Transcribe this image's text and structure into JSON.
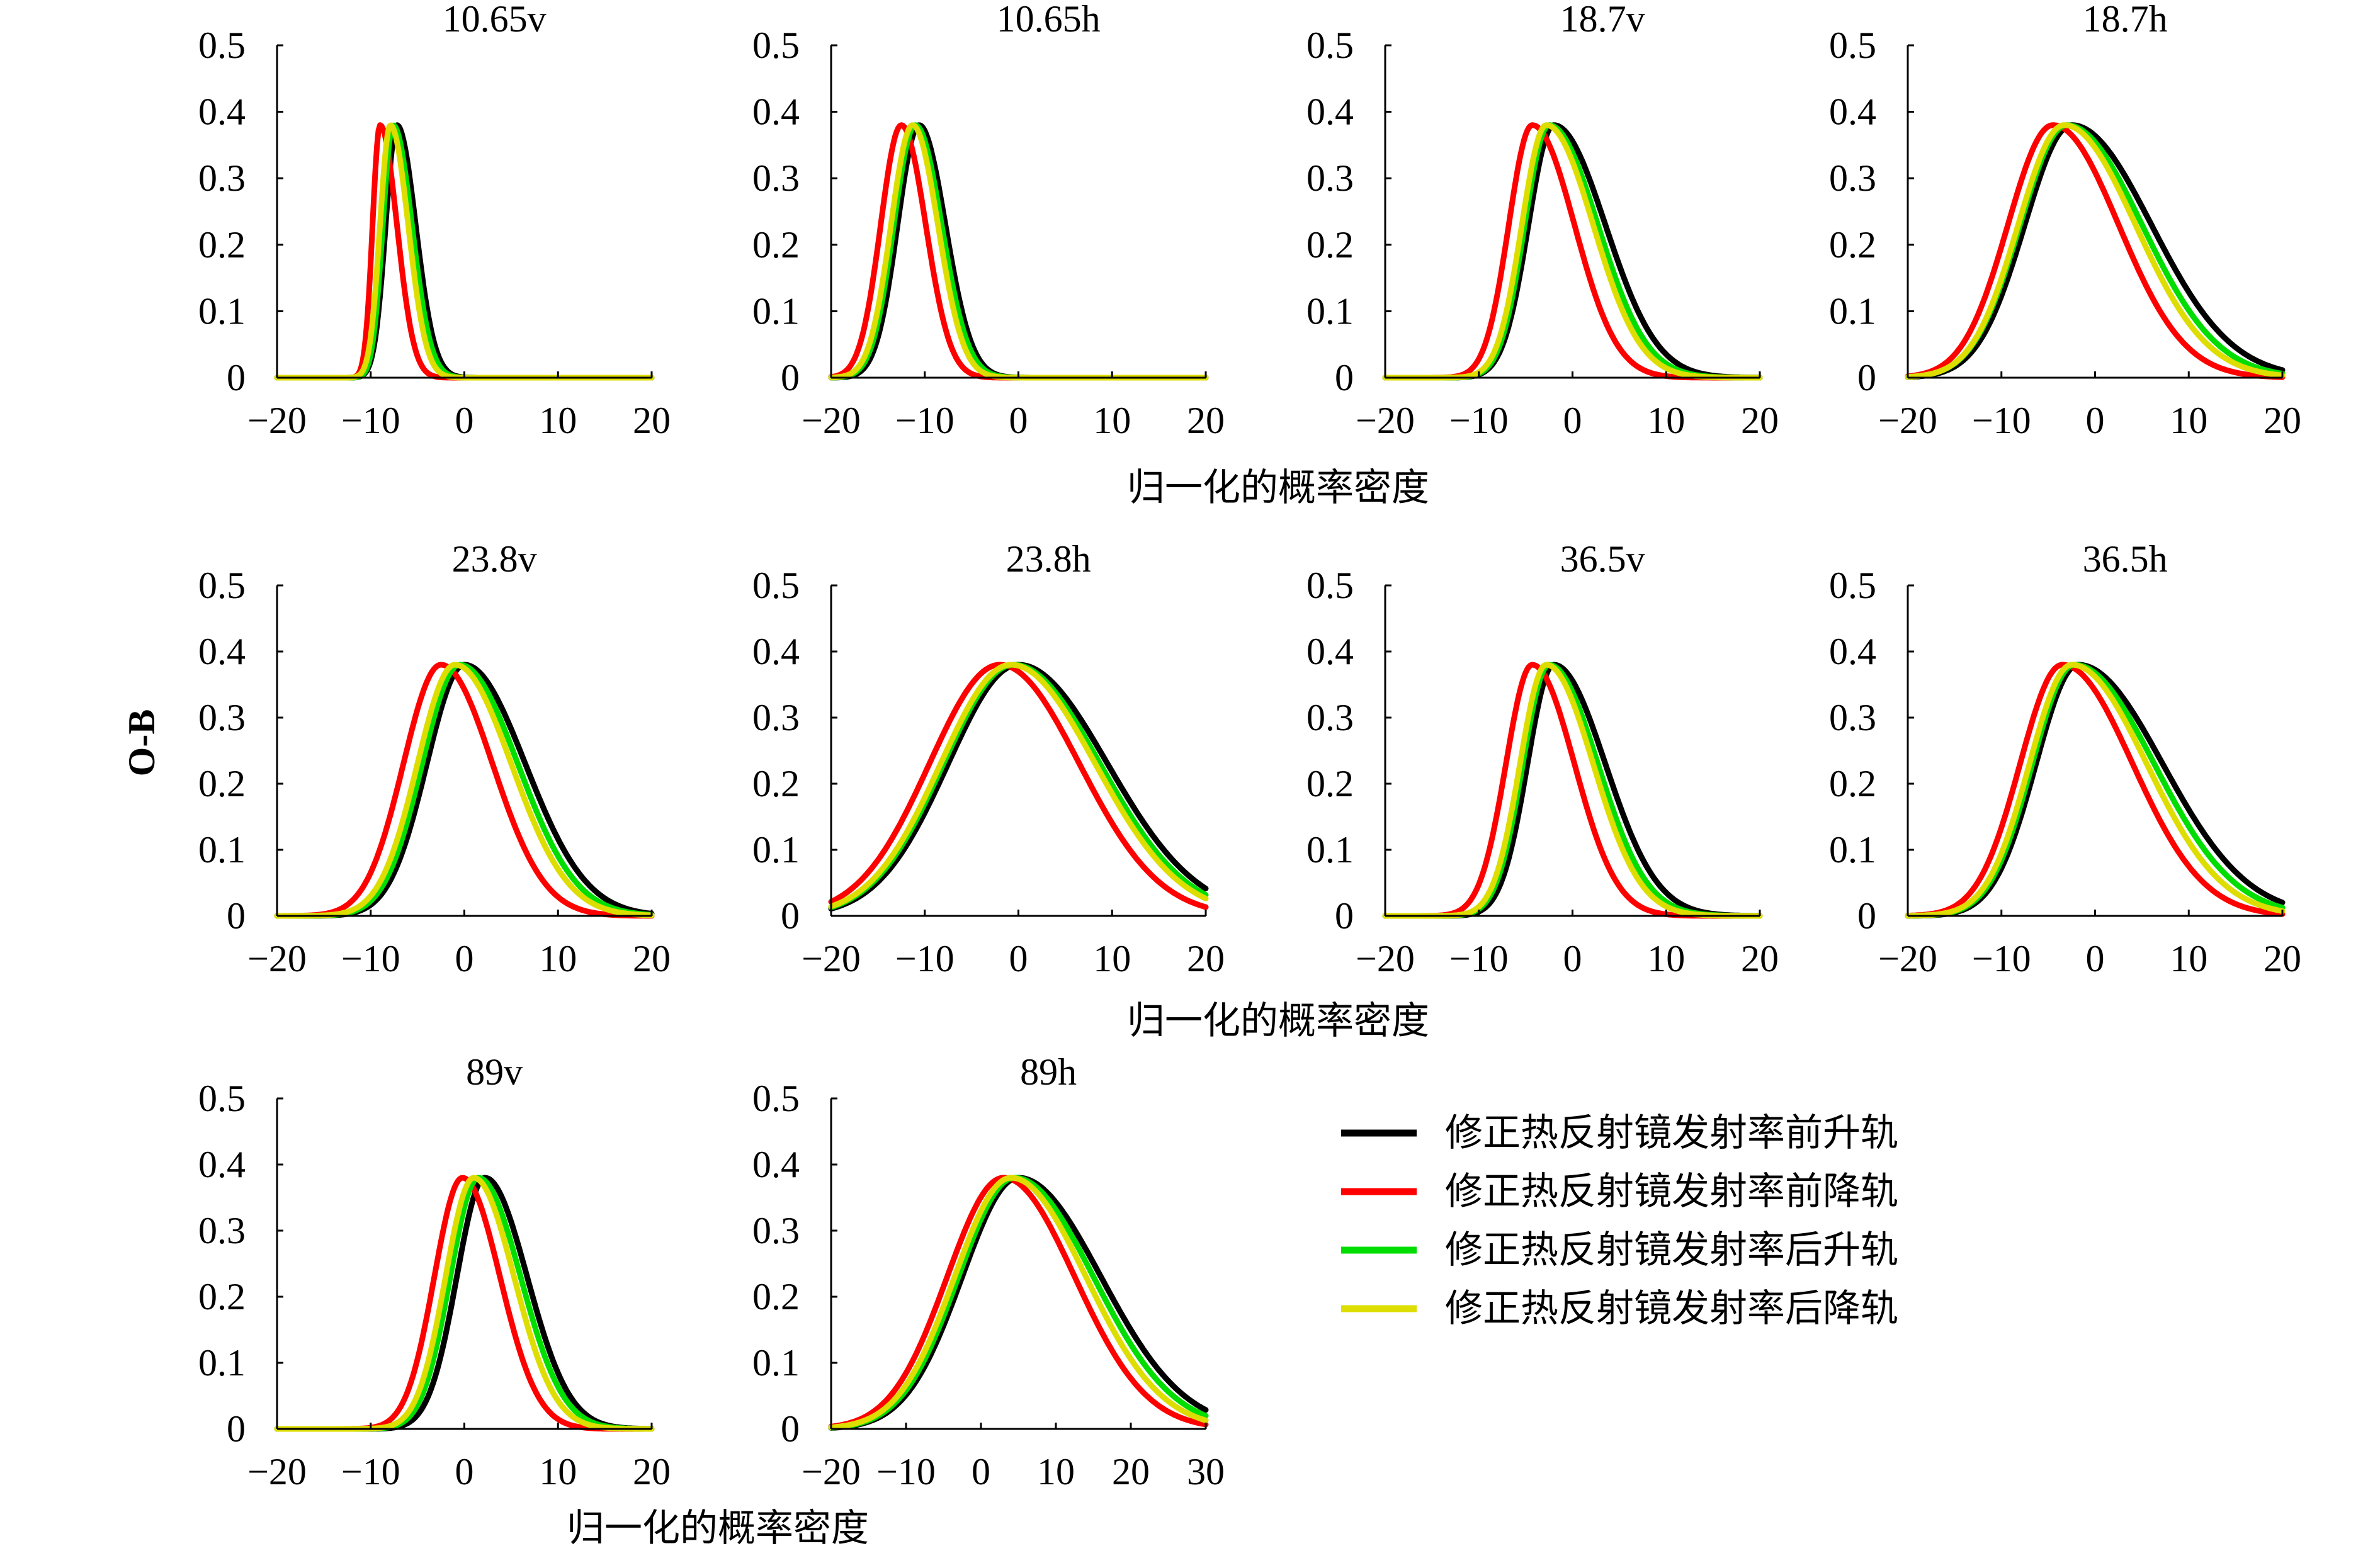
{
  "chart_data": {
    "type": "line",
    "ylabel": "O-B",
    "xlabel": "归一化的概率密度",
    "legend": {
      "placement": "right",
      "entries": [
        {
          "name": "修正热反射镜发射率前升轨",
          "color": "#000000"
        },
        {
          "name": "修正热反射镜发射率前降轨",
          "color": "#ff0000"
        },
        {
          "name": "修正热反射镜发射率后升轨",
          "color": "#00dd00"
        },
        {
          "name": "修正热反射镜发射率后降轨",
          "color": "#dddd00"
        }
      ]
    },
    "yticks": [
      "0",
      "0.1",
      "0.2",
      "0.3",
      "0.4",
      "0.5"
    ],
    "ylim": [
      0,
      0.5
    ],
    "panels": [
      {
        "title": "10.65v",
        "xlim": [
          -20,
          20
        ],
        "xticks": [
          "−20",
          "−10",
          "0",
          "10",
          "20"
        ],
        "series": [
          {
            "mu": -7.2,
            "sl": 1.2,
            "sr": 2.0
          },
          {
            "mu": -9.0,
            "sl": 0.8,
            "sr": 1.8
          },
          {
            "mu": -7.6,
            "sl": 1.1,
            "sr": 2.0
          },
          {
            "mu": -7.9,
            "sl": 1.1,
            "sr": 1.9
          }
        ]
      },
      {
        "title": "10.65h",
        "xlim": [
          -20,
          20
        ],
        "xticks": [
          "−20",
          "−10",
          "0",
          "10",
          "20"
        ],
        "series": [
          {
            "mu": -10.6,
            "sl": 2.3,
            "sr": 2.8
          },
          {
            "mu": -12.5,
            "sl": 2.2,
            "sr": 2.6
          },
          {
            "mu": -11.0,
            "sl": 2.3,
            "sr": 2.8
          },
          {
            "mu": -11.3,
            "sl": 2.3,
            "sr": 2.7
          }
        ]
      },
      {
        "title": "18.7v",
        "xlim": [
          -20,
          20
        ],
        "xticks": [
          "−20",
          "−10",
          "0",
          "10",
          "20"
        ],
        "series": [
          {
            "mu": -2.0,
            "sl": 2.7,
            "sr": 5.5
          },
          {
            "mu": -4.3,
            "sl": 2.5,
            "sr": 4.5
          },
          {
            "mu": -2.5,
            "sl": 2.6,
            "sr": 5.2
          },
          {
            "mu": -2.8,
            "sl": 2.6,
            "sr": 5.0
          }
        ]
      },
      {
        "title": "18.7h",
        "xlim": [
          -20,
          20
        ],
        "xticks": [
          "−20",
          "−10",
          "0",
          "10",
          "20"
        ],
        "series": [
          {
            "mu": -2.5,
            "sl": 5.0,
            "sr": 8.5
          },
          {
            "mu": -4.5,
            "sl": 4.8,
            "sr": 7.0
          },
          {
            "mu": -3.0,
            "sl": 5.0,
            "sr": 8.0
          },
          {
            "mu": -3.3,
            "sl": 4.9,
            "sr": 7.6
          }
        ]
      },
      {
        "title": "23.8v",
        "xlim": [
          -20,
          20
        ],
        "xticks": [
          "−20",
          "−10",
          "0",
          "10",
          "20"
        ],
        "series": [
          {
            "mu": 0.0,
            "sl": 4.0,
            "sr": 6.5
          },
          {
            "mu": -2.5,
            "sl": 4.0,
            "sr": 5.5
          },
          {
            "mu": -0.5,
            "sl": 4.0,
            "sr": 6.2
          },
          {
            "mu": -1.0,
            "sl": 4.0,
            "sr": 6.0
          }
        ]
      },
      {
        "title": "23.8h",
        "xlim": [
          -20,
          20
        ],
        "xticks": [
          "−20",
          "−10",
          "0",
          "10",
          "20"
        ],
        "series": [
          {
            "mu": 0.0,
            "sl": 7.5,
            "sr": 9.5
          },
          {
            "mu": -2.0,
            "sl": 7.5,
            "sr": 8.5
          },
          {
            "mu": -0.5,
            "sl": 7.5,
            "sr": 9.2
          },
          {
            "mu": -0.8,
            "sl": 7.5,
            "sr": 9.0
          }
        ]
      },
      {
        "title": "36.5v",
        "xlim": [
          -20,
          20
        ],
        "xticks": [
          "−20",
          "−10",
          "0",
          "10",
          "20"
        ],
        "series": [
          {
            "mu": -2.0,
            "sl": 2.8,
            "sr": 5.5
          },
          {
            "mu": -4.3,
            "sl": 2.8,
            "sr": 4.5
          },
          {
            "mu": -2.5,
            "sl": 2.8,
            "sr": 5.2
          },
          {
            "mu": -2.8,
            "sl": 2.8,
            "sr": 5.0
          }
        ]
      },
      {
        "title": "36.5h",
        "xlim": [
          -20,
          20
        ],
        "xticks": [
          "−20",
          "−10",
          "0",
          "10",
          "20"
        ],
        "series": [
          {
            "mu": -1.8,
            "sl": 4.5,
            "sr": 9.0
          },
          {
            "mu": -3.5,
            "sl": 4.5,
            "sr": 7.5
          },
          {
            "mu": -2.2,
            "sl": 4.5,
            "sr": 8.5
          },
          {
            "mu": -2.5,
            "sl": 4.5,
            "sr": 8.0
          }
        ]
      },
      {
        "title": "89v",
        "xlim": [
          -20,
          20
        ],
        "xticks": [
          "−20",
          "−10",
          "0",
          "10",
          "20"
        ],
        "series": [
          {
            "mu": 2.2,
            "sl": 3.0,
            "sr": 4.5
          },
          {
            "mu": -0.2,
            "sl": 3.0,
            "sr": 4.0
          },
          {
            "mu": 1.5,
            "sl": 3.0,
            "sr": 4.5
          },
          {
            "mu": 1.0,
            "sl": 3.0,
            "sr": 4.3
          }
        ]
      },
      {
        "title": "89h",
        "xlim": [
          -20,
          30
        ],
        "xticks": [
          "−20",
          "−10",
          "0",
          "10",
          "20",
          "30"
        ],
        "series": [
          {
            "mu": 5.0,
            "sl": 7.5,
            "sr": 11.0
          },
          {
            "mu": 3.0,
            "sl": 7.5,
            "sr": 9.5
          },
          {
            "mu": 4.5,
            "sl": 7.5,
            "sr": 10.5
          },
          {
            "mu": 4.0,
            "sl": 7.5,
            "sr": 10.0
          }
        ]
      }
    ]
  }
}
